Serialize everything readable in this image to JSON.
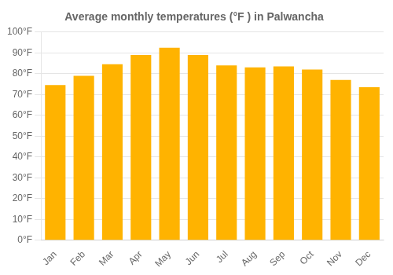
{
  "chart_data": {
    "type": "bar",
    "title": "Average monthly temperatures (°F ) in Palwancha",
    "categories": [
      "Jan",
      "Feb",
      "Mar",
      "Apr",
      "May",
      "Jun",
      "Jul",
      "Aug",
      "Sep",
      "Oct",
      "Nov",
      "Dec"
    ],
    "values": [
      74.5,
      79.0,
      84.5,
      89.0,
      92.5,
      89.0,
      84.0,
      83.0,
      83.5,
      82.0,
      77.0,
      73.5
    ],
    "color": "#FFB300",
    "ylim": [
      0,
      100
    ],
    "yticks": [
      {
        "value": 0,
        "label": "0°F"
      },
      {
        "value": 10,
        "label": "10°F"
      },
      {
        "value": 20,
        "label": "20°F"
      },
      {
        "value": 30,
        "label": "30°F"
      },
      {
        "value": 40,
        "label": "40°F"
      },
      {
        "value": 50,
        "label": "50°F"
      },
      {
        "value": 60,
        "label": "60°F"
      },
      {
        "value": 70,
        "label": "70°F"
      },
      {
        "value": 80,
        "label": "80°F"
      },
      {
        "value": 90,
        "label": "90°F"
      },
      {
        "value": 100,
        "label": "100°F"
      }
    ],
    "grid": true
  }
}
